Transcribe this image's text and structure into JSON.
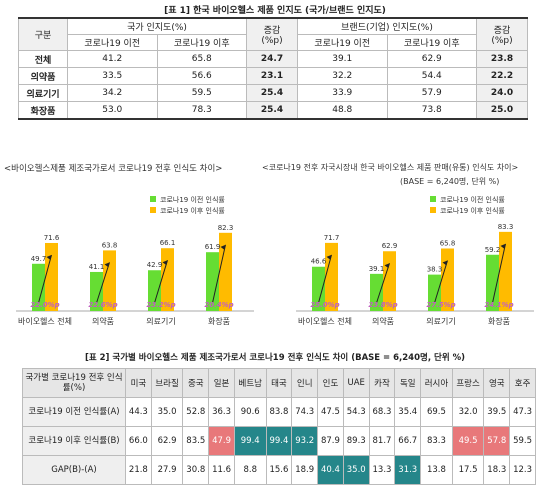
{
  "table1": {
    "title": "[표 1] 한국 바이오헬스 제품 인지도 (국가/브랜드 인지도)",
    "col_category": "구분",
    "group_country": "국가 인지도(%)",
    "group_brand": "브랜드(기업) 인지도(%)",
    "col_before": "코로나19 이전",
    "col_after": "코로나19 이후",
    "col_change": "증감",
    "col_change_unit": "(%p)",
    "rows": [
      {
        "label": "전체",
        "c_before": "41.2",
        "c_after": "65.8",
        "c_diff": "24.7",
        "b_before": "39.1",
        "b_after": "62.9",
        "b_diff": "23.8"
      },
      {
        "label": "의약품",
        "c_before": "33.5",
        "c_after": "56.6",
        "c_diff": "23.1",
        "b_before": "32.2",
        "b_after": "54.4",
        "b_diff": "22.2"
      },
      {
        "label": "의료기기",
        "c_before": "34.2",
        "c_after": "59.5",
        "c_diff": "25.4",
        "b_before": "33.9",
        "b_after": "57.9",
        "b_diff": "24.0"
      },
      {
        "label": "화장품",
        "c_before": "53.0",
        "c_after": "78.3",
        "c_diff": "25.4",
        "b_before": "48.8",
        "b_after": "73.8",
        "b_diff": "25.0"
      }
    ]
  },
  "chart_left_title": "<바이오헬스제품 제조국가로서 코로나19 전후 인식도 차이>",
  "chart_right_title": "<코로나19 전후 자국시장내 한국 바이오헬스 제품 판매(유통) 인식도 차이>",
  "chart_right_note": "(BASE = 6,240명, 단위 %)",
  "chart_data": [
    {
      "type": "bar",
      "categories": [
        "바이오헬스 전체",
        "의약품",
        "의료기기",
        "화장품"
      ],
      "series": [
        {
          "name": "코로나19 이전 인식률",
          "values": [
            49.7,
            41.1,
            42.9,
            61.9
          ]
        },
        {
          "name": "코로나19 이후 인식률",
          "values": [
            71.6,
            63.8,
            66.1,
            82.3
          ]
        }
      ],
      "annotations": [
        "22.0%p",
        "22.6%p",
        "23.2%p",
        "20.4%p"
      ],
      "legend": "top-right",
      "colors": [
        "#66dd33",
        "#ffbb00"
      ]
    },
    {
      "type": "bar",
      "categories": [
        "바이오헬스 전체",
        "의약품",
        "의료기기",
        "화장품"
      ],
      "series": [
        {
          "name": "코로나19 이전 인식률",
          "values": [
            46.6,
            39.1,
            38.3,
            59.2
          ]
        },
        {
          "name": "코로나19 이후 인식률",
          "values": [
            71.7,
            62.9,
            65.8,
            83.3
          ]
        }
      ],
      "annotations": [
        "25.0%p",
        "23.8%p",
        "27.5%p",
        "24.1%p"
      ],
      "legend": "top-right",
      "colors": [
        "#66dd33",
        "#ffbb00"
      ]
    }
  ],
  "table2": {
    "title": "[표 2] 국가별 바이오헬스 제품 제조국가로서 코로나19 전후 인식도 차이 (BASE = 6,240명, 단위 %)",
    "header_label": "국가별 코로나19 전후 인식률(%)",
    "countries": [
      "미국",
      "브라질",
      "중국",
      "일본",
      "베트남",
      "태국",
      "인니",
      "인도",
      "UAE",
      "카작",
      "독일",
      "러시아",
      "프랑스",
      "영국",
      "호주"
    ],
    "rows": [
      {
        "label": "코로나19 이전 인식률(A)",
        "values": [
          "44.3",
          "35.0",
          "52.8",
          "36.3",
          "90.6",
          "83.8",
          "74.3",
          "47.5",
          "54.3",
          "68.3",
          "35.4",
          "69.5",
          "32.0",
          "39.5",
          "47.3"
        ]
      },
      {
        "label": "코로나19 이후 인식률(B)",
        "values": [
          "66.0",
          "62.9",
          "83.5",
          "47.9",
          "99.4",
          "99.4",
          "93.2",
          "87.9",
          "89.3",
          "81.7",
          "66.7",
          "83.3",
          "49.5",
          "57.8",
          "59.5"
        ]
      },
      {
        "label": "GAP(B)-(A)",
        "values": [
          "21.8",
          "27.9",
          "30.8",
          "11.6",
          "8.8",
          "15.6",
          "18.9",
          "40.4",
          "35.0",
          "13.3",
          "31.3",
          "13.8",
          "17.5",
          "18.3",
          "12.3"
        ]
      }
    ],
    "highlight_colors": {
      "red": "#e8787a",
      "teal": "#25868a"
    }
  }
}
